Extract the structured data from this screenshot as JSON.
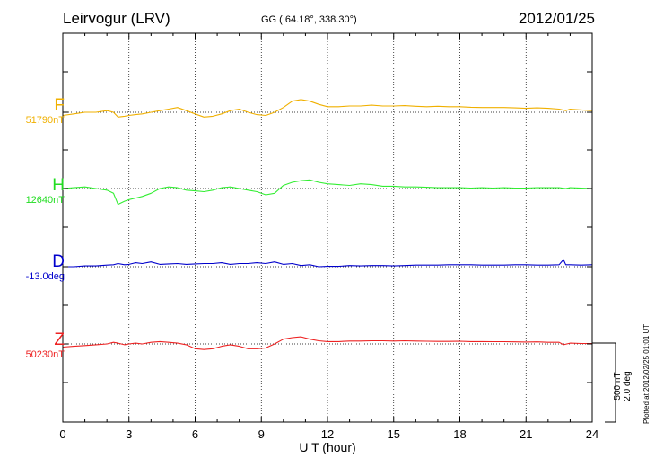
{
  "header": {
    "station": "Leirvogur (LRV)",
    "coords": "GG ( 64.18°, 338.30°)",
    "date": "2012/01/25"
  },
  "side": {
    "plotted": "Plotted at 2012/02/25 01:01 UT",
    "scale_line1": "500 nT",
    "scale_line2": "2.0 deg"
  },
  "chart_data": {
    "type": "line",
    "xlabel": "U T (hour)",
    "xlim": [
      0,
      24
    ],
    "xticks": [
      0,
      3,
      6,
      9,
      12,
      15,
      18,
      21,
      24
    ],
    "grid": true,
    "series": [
      {
        "name": "F",
        "baseline_label": "51790nT",
        "color": "#f0b000",
        "baseline": 51790,
        "unit": "nT",
        "x": [
          0,
          0.5,
          1,
          1.5,
          2,
          2.3,
          2.5,
          2.8,
          3.0,
          3.3,
          3.6,
          4.0,
          4.4,
          4.8,
          5.2,
          5.6,
          6.0,
          6.4,
          6.8,
          7.2,
          7.6,
          8.0,
          8.4,
          8.8,
          9.2,
          9.6,
          10.0,
          10.4,
          10.8,
          11.2,
          11.6,
          12.0,
          12.5,
          13,
          13.5,
          14,
          14.5,
          15,
          15.5,
          16,
          16.5,
          17,
          17.5,
          18,
          18.5,
          19,
          19.5,
          20,
          20.5,
          21,
          21.5,
          22,
          22.5,
          22.8,
          23,
          23.5,
          24
        ],
        "y": [
          51770,
          51780,
          51790,
          51790,
          51800,
          51790,
          51760,
          51765,
          51770,
          51775,
          51780,
          51790,
          51800,
          51810,
          51820,
          51800,
          51780,
          51760,
          51765,
          51780,
          51800,
          51810,
          51790,
          51775,
          51770,
          51790,
          51820,
          51860,
          51870,
          51860,
          51840,
          51825,
          51825,
          51830,
          51830,
          51835,
          51830,
          51830,
          51832,
          51828,
          51825,
          51828,
          51825,
          51825,
          51822,
          51820,
          51820,
          51820,
          51818,
          51815,
          51818,
          51815,
          51810,
          51800,
          51810,
          51805,
          51800
        ]
      },
      {
        "name": "H",
        "baseline_label": "12640nT",
        "color": "#33ee33",
        "baseline": 12640,
        "unit": "nT",
        "x": [
          0,
          0.5,
          1,
          1.5,
          2,
          2.3,
          2.5,
          2.8,
          3.0,
          3.3,
          3.6,
          4.0,
          4.4,
          4.8,
          5.2,
          5.6,
          6.0,
          6.4,
          6.8,
          7.2,
          7.6,
          8.0,
          8.4,
          8.8,
          9.2,
          9.6,
          10.0,
          10.4,
          10.8,
          11.2,
          11.6,
          12.0,
          12.5,
          13,
          13.5,
          14,
          14.5,
          15,
          15.5,
          16,
          16.5,
          17,
          17.5,
          18,
          18.5,
          19,
          19.5,
          20,
          20.5,
          21,
          21.5,
          22,
          22.5,
          22.8,
          23,
          23.5,
          24
        ],
        "y": [
          12640,
          12645,
          12650,
          12640,
          12630,
          12610,
          12540,
          12560,
          12570,
          12580,
          12590,
          12610,
          12640,
          12650,
          12645,
          12630,
          12625,
          12620,
          12630,
          12645,
          12650,
          12640,
          12630,
          12620,
          12600,
          12610,
          12660,
          12680,
          12690,
          12695,
          12680,
          12670,
          12665,
          12660,
          12670,
          12665,
          12655,
          12655,
          12650,
          12650,
          12648,
          12645,
          12645,
          12645,
          12643,
          12645,
          12643,
          12645,
          12643,
          12643,
          12645,
          12645,
          12645,
          12640,
          12645,
          12642,
          12640
        ]
      },
      {
        "name": "D",
        "baseline_label": "-13.0deg",
        "color": "#0000cc",
        "baseline": -13.0,
        "unit": "deg",
        "x": [
          0,
          0.5,
          1,
          1.5,
          2,
          2.3,
          2.5,
          2.8,
          3.0,
          3.3,
          3.6,
          4.0,
          4.4,
          4.8,
          5.2,
          5.6,
          6.0,
          6.4,
          6.8,
          7.2,
          7.6,
          8.0,
          8.4,
          8.8,
          9.2,
          9.6,
          10.0,
          10.4,
          10.8,
          11.2,
          11.6,
          12.0,
          12.5,
          13,
          13.5,
          14,
          14.5,
          15,
          15.5,
          16,
          16.5,
          17,
          17.5,
          18,
          18.5,
          19,
          19.5,
          20,
          20.5,
          21,
          21.5,
          22,
          22.5,
          22.7,
          22.8,
          23,
          23.5,
          24
        ],
        "y": [
          -13.0,
          -13.0,
          -12.98,
          -12.98,
          -12.96,
          -12.95,
          -12.92,
          -12.95,
          -12.94,
          -12.9,
          -12.92,
          -12.88,
          -12.94,
          -12.93,
          -12.92,
          -12.94,
          -12.93,
          -12.92,
          -12.92,
          -12.9,
          -12.94,
          -12.92,
          -12.92,
          -12.9,
          -12.92,
          -12.88,
          -12.94,
          -12.92,
          -12.97,
          -12.95,
          -13.0,
          -12.99,
          -12.99,
          -12.97,
          -12.98,
          -12.97,
          -12.97,
          -12.98,
          -12.97,
          -12.96,
          -12.96,
          -12.96,
          -12.95,
          -12.95,
          -12.95,
          -12.96,
          -12.96,
          -12.96,
          -12.95,
          -12.95,
          -12.96,
          -12.96,
          -12.95,
          -12.82,
          -12.95,
          -12.95,
          -12.96,
          -12.95
        ]
      },
      {
        "name": "Z",
        "baseline_label": "50230nT",
        "color": "#ee2222",
        "baseline": 50230,
        "unit": "nT",
        "x": [
          0,
          0.5,
          1,
          1.5,
          2,
          2.3,
          2.5,
          2.8,
          3.0,
          3.3,
          3.6,
          4.0,
          4.4,
          4.8,
          5.2,
          5.6,
          6.0,
          6.4,
          6.8,
          7.2,
          7.6,
          8.0,
          8.4,
          8.8,
          9.2,
          9.6,
          10.0,
          10.4,
          10.8,
          11.2,
          11.6,
          12.0,
          12.5,
          13,
          13.5,
          14,
          14.5,
          15,
          15.5,
          16,
          16.5,
          17,
          17.5,
          18,
          18.5,
          19,
          19.5,
          20,
          20.5,
          21,
          21.5,
          22,
          22.5,
          22.7,
          23,
          23.5,
          24
        ],
        "y": [
          50210,
          50215,
          50220,
          50225,
          50230,
          50240,
          50235,
          50225,
          50230,
          50235,
          50230,
          50240,
          50245,
          50240,
          50235,
          50225,
          50200,
          50195,
          50200,
          50215,
          50225,
          50215,
          50200,
          50200,
          50205,
          50230,
          50260,
          50270,
          50275,
          50260,
          50250,
          50245,
          50245,
          50248,
          50248,
          50250,
          50250,
          50248,
          50250,
          50248,
          50247,
          50246,
          50246,
          50247,
          50245,
          50245,
          50244,
          50244,
          50243,
          50242,
          50243,
          50240,
          50240,
          50225,
          50235,
          50233,
          50232
        ]
      }
    ]
  }
}
